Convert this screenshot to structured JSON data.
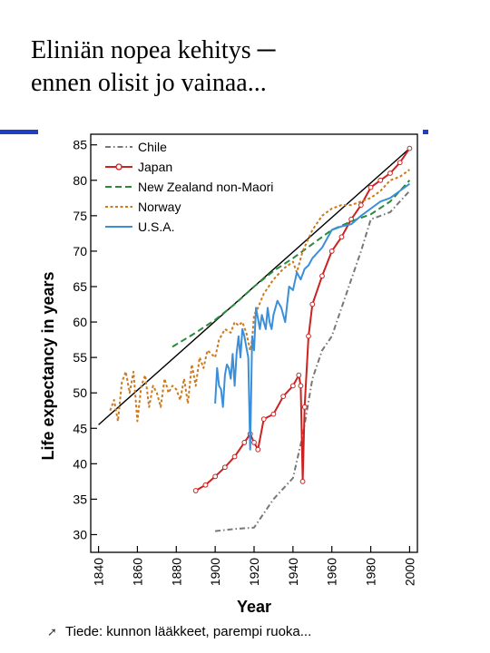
{
  "slide": {
    "title_line1": "Eliniän nopea kehitys ─",
    "title_line2": "ennen olisit jo vainaa...",
    "accent_color": "#1f3fc4",
    "footer_bullet_icon": "arrow-bullet-icon",
    "footer_text": "Tiede: kunnon lääkkeet, parempi ruoka..."
  },
  "chart_data": {
    "type": "line",
    "xlabel": "Year",
    "ylabel": "Life expectancy in years",
    "xlim": [
      1836,
      2004
    ],
    "ylim": [
      27.5,
      86.5
    ],
    "x_ticks": [
      1840,
      1860,
      1880,
      1900,
      1920,
      1940,
      1960,
      1980,
      2000
    ],
    "y_ticks": [
      30,
      35,
      40,
      45,
      50,
      55,
      60,
      65,
      70,
      75,
      80,
      85
    ],
    "grid": false,
    "legend_position": "top-left",
    "trend_line": {
      "x": [
        1840,
        2000
      ],
      "y": [
        45.5,
        84.5
      ],
      "color": "#000000"
    },
    "series": [
      {
        "name": "Chile",
        "color": "#777777",
        "dash": "dash-dot",
        "x": [
          1900,
          1910,
          1920,
          1930,
          1940,
          1945,
          1950,
          1955,
          1960,
          1965,
          1970,
          1975,
          1980,
          1985,
          1990,
          1995,
          2000
        ],
        "y": [
          30.5,
          30.8,
          31,
          35,
          38,
          44,
          52,
          56,
          58,
          62,
          66,
          70,
          74.5,
          75,
          75.5,
          77,
          78.5
        ]
      },
      {
        "name": "Japan",
        "color": "#cc2222",
        "dash": "solid-circles",
        "x": [
          1890,
          1895,
          1900,
          1905,
          1910,
          1915,
          1918,
          1920,
          1922,
          1925,
          1930,
          1935,
          1940,
          1943,
          1944,
          1945,
          1946,
          1948,
          1950,
          1955,
          1960,
          1965,
          1970,
          1975,
          1980,
          1985,
          1990,
          1995,
          2000
        ],
        "y": [
          36.2,
          37,
          38.2,
          39.5,
          41,
          43,
          44.2,
          43,
          42,
          46.3,
          47,
          49.5,
          51,
          52.5,
          51,
          37.5,
          48,
          58,
          62.5,
          66.5,
          70,
          72,
          74.5,
          76.5,
          79,
          80,
          81,
          82.5,
          84.5
        ]
      },
      {
        "name": "New Zealand non-Maori",
        "color": "#2a8a3a",
        "dash": "dashed",
        "x": [
          1878,
          1890,
          1900,
          1910,
          1920,
          1930,
          1940,
          1950,
          1960,
          1970,
          1980,
          1990,
          2000
        ],
        "y": [
          56.5,
          58.5,
          60.3,
          62.5,
          65,
          67.2,
          69,
          71,
          73,
          74.2,
          75.2,
          77,
          80
        ]
      },
      {
        "name": "Norway",
        "color": "#cc7a1e",
        "dash": "dotted",
        "x": [
          1846,
          1848,
          1850,
          1852,
          1854,
          1856,
          1858,
          1860,
          1862,
          1864,
          1866,
          1868,
          1870,
          1872,
          1874,
          1876,
          1878,
          1880,
          1882,
          1884,
          1886,
          1888,
          1890,
          1892,
          1894,
          1896,
          1898,
          1900,
          1902,
          1905,
          1908,
          1910,
          1912,
          1914,
          1916,
          1918,
          1919,
          1920,
          1922,
          1925,
          1930,
          1935,
          1940,
          1942,
          1945,
          1950,
          1955,
          1960,
          1965,
          1970,
          1975,
          1980,
          1985,
          1990,
          1995,
          2000
        ],
        "y": [
          47.5,
          49,
          46,
          51.5,
          53,
          50,
          53,
          46,
          51,
          52.5,
          48,
          51,
          50,
          48,
          52,
          50,
          51,
          50.5,
          49,
          52,
          48.5,
          54,
          51,
          55,
          53.5,
          56,
          55.5,
          55,
          57.5,
          59,
          58.5,
          60,
          59.5,
          60,
          58.5,
          56,
          57.5,
          61,
          62,
          64,
          66,
          67.5,
          68.5,
          67,
          70,
          73,
          75,
          76,
          76.5,
          76.5,
          77,
          77.5,
          78.5,
          80,
          80.5,
          81.5
        ]
      },
      {
        "name": "U.S.A.",
        "color": "#3a8fd8",
        "dash": "solid",
        "x": [
          1900,
          1901,
          1902,
          1903,
          1904,
          1905,
          1906,
          1907,
          1908,
          1909,
          1910,
          1911,
          1912,
          1913,
          1914,
          1915,
          1916,
          1917,
          1918,
          1919,
          1920,
          1921,
          1922,
          1923,
          1924,
          1925,
          1926,
          1927,
          1928,
          1929,
          1930,
          1932,
          1934,
          1936,
          1938,
          1940,
          1942,
          1944,
          1946,
          1948,
          1950,
          1955,
          1960,
          1965,
          1970,
          1975,
          1980,
          1985,
          1990,
          1995,
          2000
        ],
        "y": [
          48.5,
          53.5,
          51,
          50.5,
          48,
          52.5,
          54,
          53.5,
          52,
          55.5,
          51,
          55.5,
          58,
          55,
          59,
          58,
          56.5,
          55,
          42,
          58,
          56,
          62,
          60.5,
          59,
          61,
          60,
          59,
          62,
          60,
          59,
          61,
          63,
          62,
          60,
          65,
          64.5,
          67,
          66,
          67.5,
          68,
          69,
          70.5,
          73,
          73.5,
          73.8,
          75,
          76,
          77,
          77.5,
          78.5,
          79.5
        ]
      }
    ]
  }
}
